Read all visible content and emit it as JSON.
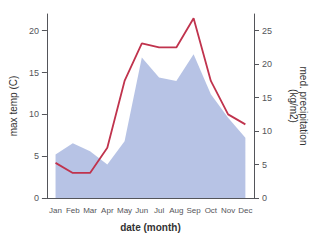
{
  "chart_data": {
    "type": "line",
    "categories": [
      "Jan",
      "Feb",
      "Mar",
      "Apr",
      "May",
      "Jun",
      "Jul",
      "Aug",
      "Sep",
      "Oct",
      "Nov",
      "Dec"
    ],
    "xlabel": "date (month)",
    "ylabel": "max temp (C)",
    "y2label": "med. precipitation\n(kg/m2)",
    "ylim": [
      0,
      22
    ],
    "yticks": [
      0,
      5,
      10,
      15,
      20
    ],
    "y2lim": [
      0,
      27.5
    ],
    "y2ticks": [
      0,
      5,
      10,
      15,
      20,
      25
    ],
    "grid": false,
    "series": [
      {
        "type": "area",
        "color": "#aab8e0",
        "axis": "y2",
        "values": [
          6.5,
          8.2,
          7.0,
          5.0,
          8.5,
          21.0,
          18.0,
          17.5,
          21.5,
          15.5,
          12.0,
          9.0
        ]
      },
      {
        "type": "line",
        "color": "#c0334d",
        "values": [
          4.2,
          3.0,
          3.0,
          6.0,
          14.0,
          18.5,
          18.0,
          18.0,
          21.5,
          14.0,
          10.0,
          8.8
        ]
      }
    ]
  }
}
